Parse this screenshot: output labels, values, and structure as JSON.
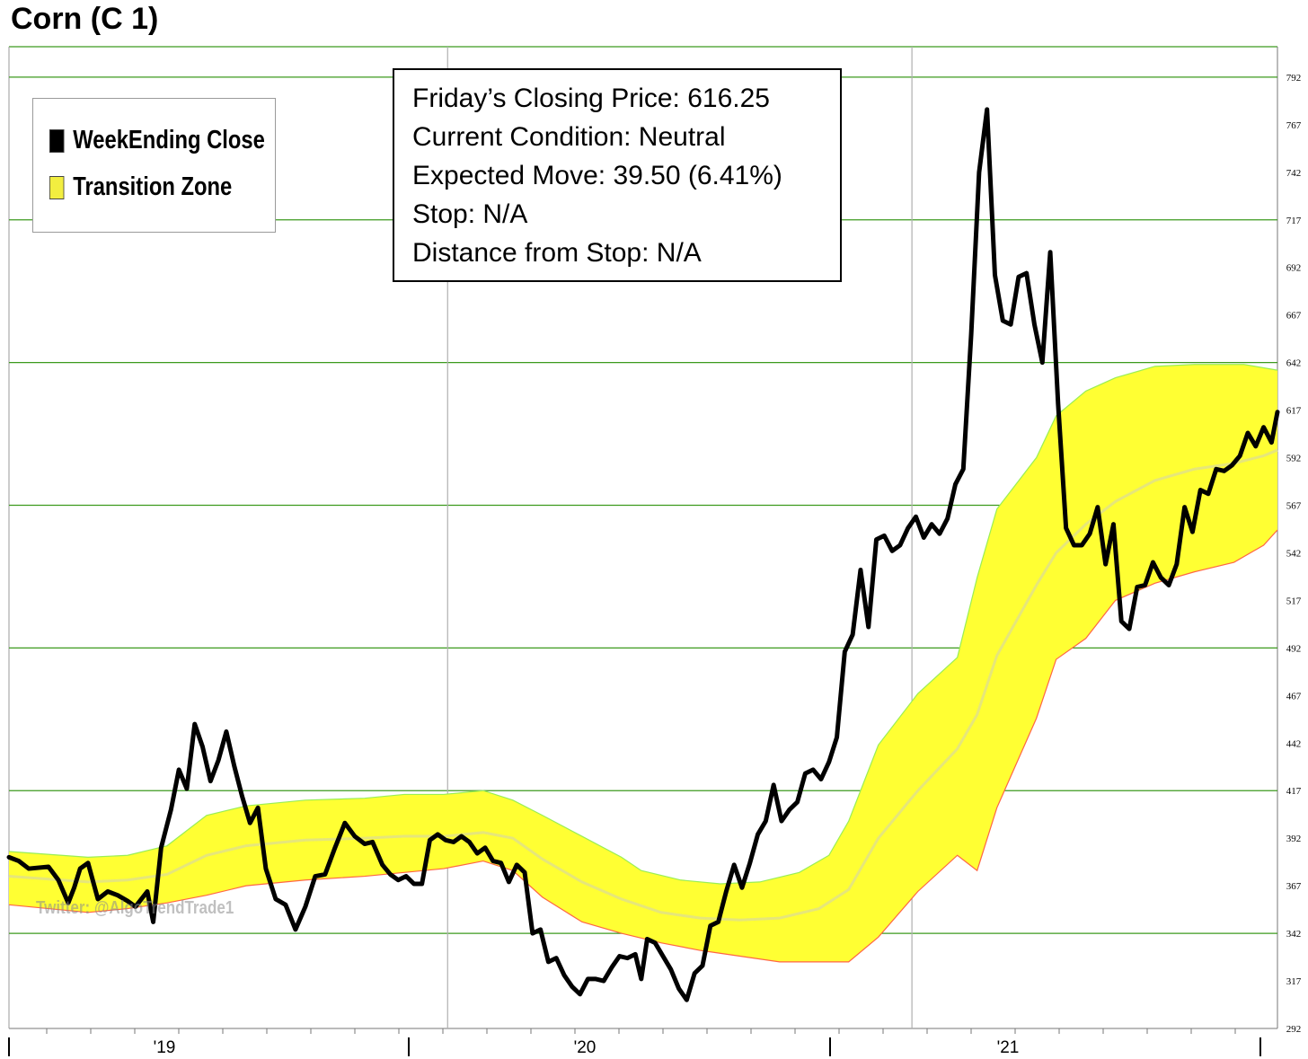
{
  "title": "Corn (C 1)",
  "legend": {
    "close_label": "WeekEnding Close",
    "zone_label": "Transition Zone"
  },
  "info": {
    "line1": "Friday’s Closing Price: 616.25",
    "line2": "Current Condition: Neutral",
    "line3": "Expected Move: 39.50 (6.41%)",
    "line4": "Stop: N/A",
    "line5": "Distance from Stop: N/A"
  },
  "watermark": "Twitter: @AlgoTrendTrade1",
  "colors": {
    "close": "#000000",
    "zone_fill": "#ffff33",
    "zone_upper": "#99ee55",
    "zone_lower": "#ff6644",
    "zone_mid": "#e6e67a",
    "grid": "#3c9a1e",
    "year_grid": "#b0b0b0"
  },
  "chart_data": {
    "type": "line",
    "title": "Corn (C 1)",
    "ylim": [
      292,
      808
    ],
    "yticks": [
      292,
      317,
      342,
      367,
      392,
      417,
      442,
      467,
      492,
      517,
      542,
      567,
      592,
      617,
      642,
      667,
      692,
      717,
      742,
      767,
      792
    ],
    "xticks": [
      "'19",
      "'20",
      "'21"
    ],
    "grid": true,
    "legend_position": "top-left",
    "series": [
      {
        "name": "WeekEnding Close",
        "points": [
          [
            0,
            382
          ],
          [
            5,
            380
          ],
          [
            10,
            376
          ],
          [
            20,
            377
          ],
          [
            25,
            370
          ],
          [
            30,
            358
          ],
          [
            33,
            366
          ],
          [
            36,
            376
          ],
          [
            40,
            379
          ],
          [
            45,
            360
          ],
          [
            50,
            364
          ],
          [
            55,
            362
          ],
          [
            60,
            359
          ],
          [
            64,
            356
          ],
          [
            70,
            364
          ],
          [
            73,
            348
          ],
          [
            77,
            387
          ],
          [
            82,
            407
          ],
          [
            86,
            428
          ],
          [
            90,
            418
          ],
          [
            94,
            452
          ],
          [
            98,
            440
          ],
          [
            102,
            422
          ],
          [
            106,
            433
          ],
          [
            110,
            448
          ],
          [
            114,
            430
          ],
          [
            118,
            414
          ],
          [
            122,
            400
          ],
          [
            126,
            408
          ],
          [
            130,
            376
          ],
          [
            135,
            360
          ],
          [
            140,
            357
          ],
          [
            145,
            344
          ],
          [
            150,
            356
          ],
          [
            155,
            372
          ],
          [
            160,
            373
          ],
          [
            165,
            387
          ],
          [
            170,
            400
          ],
          [
            175,
            393
          ],
          [
            180,
            389
          ],
          [
            184,
            390
          ],
          [
            189,
            378
          ],
          [
            193,
            373
          ],
          [
            197,
            370
          ],
          [
            201,
            372
          ],
          [
            205,
            368
          ],
          [
            209,
            368
          ],
          [
            213,
            391
          ],
          [
            217,
            394
          ],
          [
            221,
            391
          ],
          [
            225,
            390
          ],
          [
            229,
            393
          ],
          [
            233,
            390
          ],
          [
            237,
            384
          ],
          [
            241,
            387
          ],
          [
            245,
            380
          ],
          [
            249,
            379
          ],
          [
            253,
            369
          ],
          [
            257,
            378
          ],
          [
            261,
            374
          ],
          [
            265,
            342
          ],
          [
            269,
            344
          ],
          [
            273,
            327
          ],
          [
            277,
            329
          ],
          [
            281,
            320
          ],
          [
            285,
            314
          ],
          [
            289,
            310
          ],
          [
            293,
            318
          ],
          [
            297,
            318
          ],
          [
            301,
            317
          ],
          [
            305,
            324
          ],
          [
            309,
            330
          ],
          [
            313,
            329
          ],
          [
            317,
            331
          ],
          [
            320,
            318
          ],
          [
            323,
            339
          ],
          [
            327,
            337
          ],
          [
            331,
            330
          ],
          [
            335,
            323
          ],
          [
            339,
            313
          ],
          [
            343,
            307
          ],
          [
            347,
            321
          ],
          [
            351,
            325
          ],
          [
            355,
            346
          ],
          [
            359,
            348
          ],
          [
            363,
            364
          ],
          [
            367,
            378
          ],
          [
            371,
            366
          ],
          [
            375,
            379
          ],
          [
            379,
            394
          ],
          [
            383,
            401
          ],
          [
            387,
            420
          ],
          [
            391,
            401
          ],
          [
            395,
            407
          ],
          [
            399,
            411
          ],
          [
            403,
            426
          ],
          [
            407,
            428
          ],
          [
            411,
            423
          ],
          [
            415,
            432
          ],
          [
            419,
            445
          ],
          [
            423,
            490
          ],
          [
            427,
            499
          ],
          [
            431,
            533
          ],
          [
            435,
            503
          ],
          [
            439,
            549
          ],
          [
            443,
            551
          ],
          [
            447,
            543
          ],
          [
            451,
            546
          ],
          [
            455,
            555
          ],
          [
            459,
            561
          ],
          [
            463,
            550
          ],
          [
            467,
            557
          ],
          [
            471,
            552
          ],
          [
            475,
            560
          ],
          [
            479,
            578
          ],
          [
            483,
            586
          ],
          [
            487,
            657
          ],
          [
            491,
            742
          ],
          [
            495,
            775
          ],
          [
            499,
            688
          ],
          [
            503,
            664
          ],
          [
            507,
            662
          ],
          [
            511,
            687
          ],
          [
            515,
            689
          ],
          [
            519,
            662
          ],
          [
            523,
            642
          ],
          [
            527,
            700
          ],
          [
            531,
            620
          ],
          [
            535,
            555
          ],
          [
            539,
            546
          ],
          [
            543,
            546
          ],
          [
            547,
            552
          ],
          [
            551,
            566
          ],
          [
            555,
            536
          ],
          [
            559,
            557
          ],
          [
            563,
            506
          ],
          [
            567,
            502
          ],
          [
            571,
            524
          ],
          [
            575,
            525
          ],
          [
            579,
            537
          ],
          [
            583,
            529
          ],
          [
            587,
            525
          ],
          [
            591,
            536
          ],
          [
            595,
            566
          ],
          [
            599,
            553
          ],
          [
            603,
            575
          ],
          [
            607,
            573
          ],
          [
            611,
            586
          ],
          [
            615,
            585
          ],
          [
            619,
            588
          ],
          [
            623,
            593
          ],
          [
            627,
            605
          ],
          [
            631,
            598
          ],
          [
            635,
            608
          ],
          [
            639,
            600
          ],
          [
            642,
            616
          ]
        ]
      },
      {
        "name": "Transition Zone upper",
        "points": [
          [
            0,
            385
          ],
          [
            40,
            382
          ],
          [
            60,
            383
          ],
          [
            80,
            388
          ],
          [
            100,
            404
          ],
          [
            120,
            409
          ],
          [
            150,
            412
          ],
          [
            180,
            413
          ],
          [
            200,
            415
          ],
          [
            220,
            415
          ],
          [
            240,
            417
          ],
          [
            255,
            412
          ],
          [
            270,
            404
          ],
          [
            290,
            393
          ],
          [
            310,
            382
          ],
          [
            320,
            375
          ],
          [
            340,
            370
          ],
          [
            360,
            368
          ],
          [
            380,
            369
          ],
          [
            400,
            374
          ],
          [
            415,
            383
          ],
          [
            425,
            401
          ],
          [
            440,
            441
          ],
          [
            460,
            468
          ],
          [
            480,
            487
          ],
          [
            490,
            529
          ],
          [
            500,
            565
          ],
          [
            520,
            592
          ],
          [
            530,
            614
          ],
          [
            545,
            627
          ],
          [
            560,
            634
          ],
          [
            580,
            640
          ],
          [
            600,
            641
          ],
          [
            625,
            641
          ],
          [
            642,
            638
          ]
        ]
      },
      {
        "name": "Transition Zone lower",
        "points": [
          [
            0,
            357
          ],
          [
            40,
            353
          ],
          [
            60,
            355
          ],
          [
            80,
            358
          ],
          [
            100,
            362
          ],
          [
            120,
            367
          ],
          [
            150,
            370
          ],
          [
            180,
            372
          ],
          [
            200,
            374
          ],
          [
            220,
            376
          ],
          [
            240,
            380
          ],
          [
            255,
            375
          ],
          [
            270,
            361
          ],
          [
            290,
            348
          ],
          [
            310,
            342
          ],
          [
            330,
            337
          ],
          [
            350,
            333
          ],
          [
            370,
            330
          ],
          [
            390,
            327
          ],
          [
            410,
            327
          ],
          [
            425,
            327
          ],
          [
            440,
            340
          ],
          [
            460,
            364
          ],
          [
            480,
            383
          ],
          [
            490,
            375
          ],
          [
            500,
            408
          ],
          [
            520,
            455
          ],
          [
            530,
            486
          ],
          [
            545,
            497
          ],
          [
            560,
            517
          ],
          [
            580,
            526
          ],
          [
            600,
            532
          ],
          [
            620,
            537
          ],
          [
            635,
            546
          ],
          [
            642,
            554
          ]
        ]
      },
      {
        "name": "Transition Zone mid",
        "points": [
          [
            0,
            372
          ],
          [
            40,
            369
          ],
          [
            60,
            370
          ],
          [
            80,
            373
          ],
          [
            100,
            383
          ],
          [
            120,
            388
          ],
          [
            150,
            391
          ],
          [
            180,
            392
          ],
          [
            200,
            393
          ],
          [
            220,
            393
          ],
          [
            240,
            395
          ],
          [
            255,
            392
          ],
          [
            270,
            381
          ],
          [
            290,
            369
          ],
          [
            310,
            360
          ],
          [
            330,
            353
          ],
          [
            350,
            350
          ],
          [
            370,
            349
          ],
          [
            390,
            350
          ],
          [
            410,
            355
          ],
          [
            425,
            365
          ],
          [
            440,
            392
          ],
          [
            460,
            417
          ],
          [
            480,
            439
          ],
          [
            490,
            457
          ],
          [
            500,
            488
          ],
          [
            520,
            525
          ],
          [
            530,
            542
          ],
          [
            545,
            557
          ],
          [
            560,
            569
          ],
          [
            580,
            580
          ],
          [
            600,
            586
          ],
          [
            620,
            589
          ],
          [
            635,
            593
          ],
          [
            642,
            596
          ]
        ]
      }
    ]
  }
}
